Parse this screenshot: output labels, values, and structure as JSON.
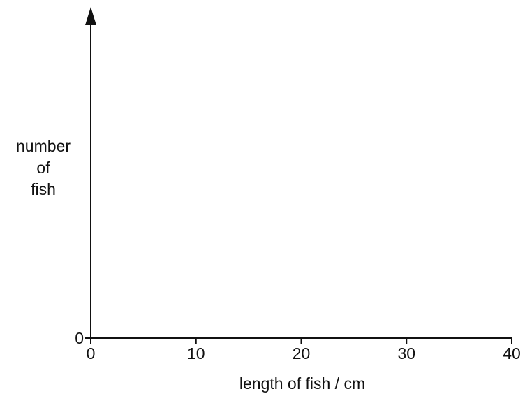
{
  "chart_data": {
    "type": "scatter",
    "title": "",
    "xlabel": "length of fish / cm",
    "ylabel": [
      "number",
      "of",
      "fish"
    ],
    "x_ticks": [
      "0",
      "10",
      "20",
      "30",
      "40"
    ],
    "x_tick_values": [
      0,
      10,
      20,
      30,
      40
    ],
    "y_ticks": [
      "0"
    ],
    "y_tick_values": [
      0
    ],
    "xlim": [
      0,
      40
    ],
    "grid": false,
    "series": [],
    "colors": {
      "axis": "#111111",
      "text": "#111111",
      "background": "#ffffff"
    }
  }
}
